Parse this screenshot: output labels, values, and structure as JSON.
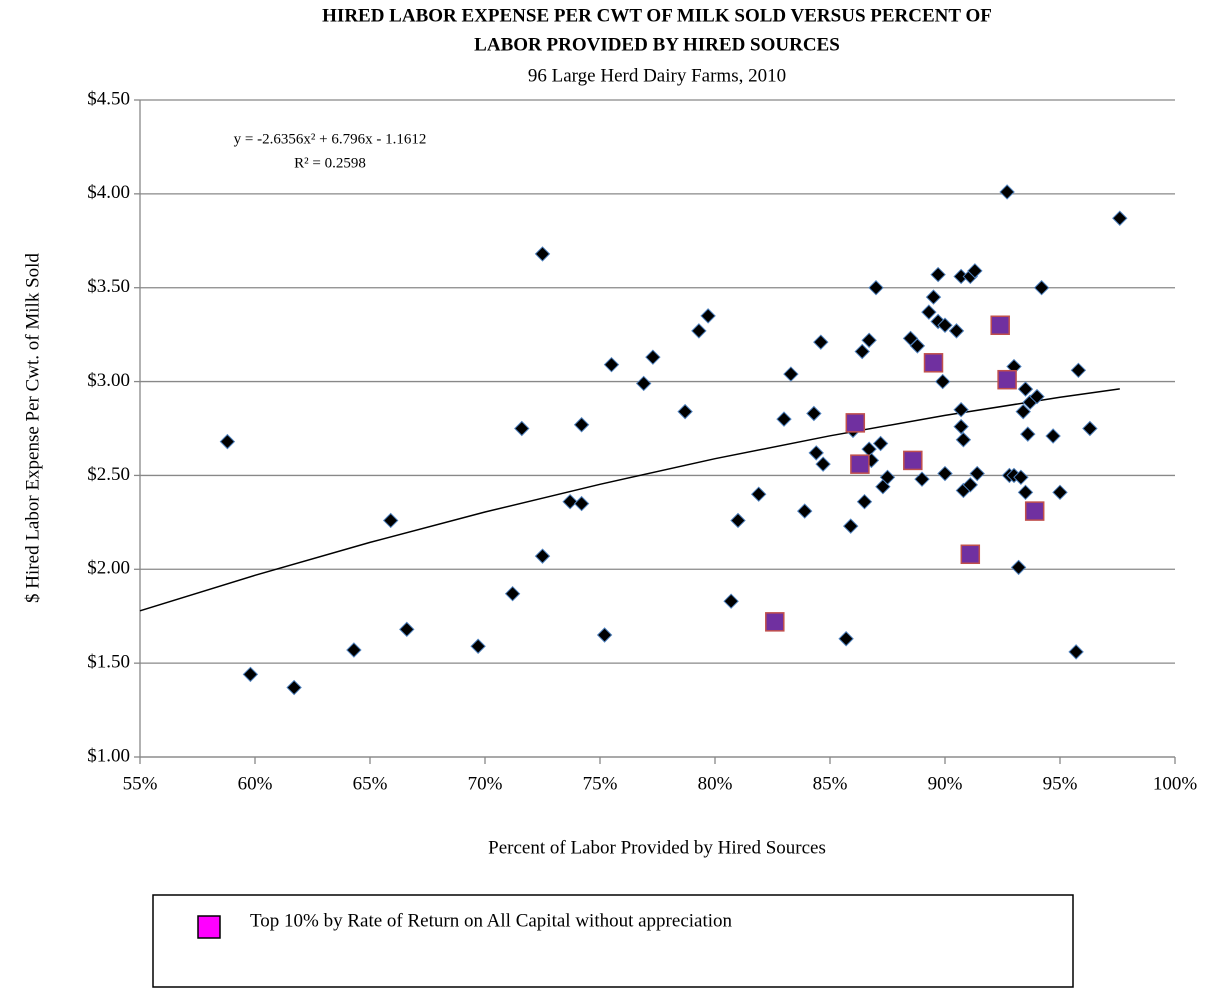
{
  "chart_data": {
    "type": "scatter",
    "title": [
      "HIRED LABOR EXPENSE PER CWT OF MILK SOLD VERSUS PERCENT OF",
      "LABOR PROVIDED BY HIRED SOURCES"
    ],
    "subtitle": "96 Large Herd Dairy Farms, 2010",
    "x_label": "Percent of Labor Provided by Hired Sources",
    "y_label": "$ Hired Labor Expense Per Cwt. of Milk Sold",
    "xlim": [
      55,
      100
    ],
    "xticks": [
      {
        "value": 55,
        "label": "55%"
      },
      {
        "value": 60,
        "label": "60%"
      },
      {
        "value": 65,
        "label": "65%"
      },
      {
        "value": 70,
        "label": "70%"
      },
      {
        "value": 75,
        "label": "75%"
      },
      {
        "value": 80,
        "label": "80%"
      },
      {
        "value": 85,
        "label": "85%"
      },
      {
        "value": 90,
        "label": "90%"
      },
      {
        "value": 95,
        "label": "95%"
      },
      {
        "value": 100,
        "label": "100%"
      }
    ],
    "ylim": [
      1,
      4.5
    ],
    "yticks": [
      {
        "value": 1,
        "label": "$1.00"
      },
      {
        "value": 1.5,
        "label": "$1.50"
      },
      {
        "value": 2,
        "label": "$2.00"
      },
      {
        "value": 2.5,
        "label": "$2.50"
      },
      {
        "value": 3,
        "label": "$3.00"
      },
      {
        "value": 3.5,
        "label": "$3.50"
      },
      {
        "value": 4,
        "label": "$4.00"
      },
      {
        "value": 4.5,
        "label": "$4.50"
      }
    ],
    "grid": true,
    "series": [
      {
        "color": "#000000",
        "marker": "diamond",
        "x": [
          58.8,
          59.8,
          61.7,
          64.3,
          65.9,
          66.6,
          69.7,
          71.2,
          71.6,
          72.5,
          72.5,
          73.7,
          74.2,
          74.2,
          75.2,
          75.5,
          76.9,
          77.3,
          78.7,
          79.3,
          79.7,
          80.7,
          81.0,
          81.9,
          83.0,
          83.3,
          83.9,
          84.3,
          84.4,
          84.6,
          84.7,
          85.7,
          85.9,
          86.0,
          86.4,
          86.5,
          86.7,
          86.7,
          86.8,
          87.0,
          87.2,
          87.3,
          87.5,
          88.5,
          88.8,
          89.0,
          89.3,
          89.5,
          89.7,
          89.7,
          89.9,
          90.0,
          90.0,
          90.5,
          90.7,
          90.7,
          90.7,
          90.8,
          90.8,
          91.1,
          91.1,
          91.3,
          91.4,
          92.7,
          92.8,
          93.0,
          93.0,
          93.2,
          93.3,
          93.4,
          93.5,
          93.5,
          93.6,
          93.7,
          94.0,
          94.2,
          94.7,
          95.0,
          95.7,
          95.8,
          96.3,
          97.6
        ],
        "values": [
          2.68,
          1.44,
          1.37,
          1.57,
          2.26,
          1.68,
          1.59,
          1.87,
          2.75,
          3.68,
          2.07,
          2.36,
          2.35,
          2.77,
          1.65,
          3.09,
          2.99,
          3.13,
          2.84,
          3.27,
          3.35,
          1.83,
          2.26,
          2.4,
          2.8,
          3.04,
          2.31,
          2.83,
          2.62,
          3.21,
          2.56,
          1.63,
          2.23,
          2.74,
          3.16,
          2.36,
          3.22,
          2.64,
          2.58,
          3.5,
          2.67,
          2.44,
          2.49,
          3.23,
          3.19,
          2.48,
          3.37,
          3.45,
          3.32,
          3.57,
          3.0,
          3.3,
          2.51,
          3.27,
          2.85,
          3.56,
          2.76,
          2.69,
          2.42,
          3.56,
          2.45,
          3.59,
          2.51,
          4.01,
          2.5,
          3.08,
          2.5,
          2.01,
          2.49,
          2.84,
          2.41,
          2.96,
          2.72,
          2.89,
          2.92,
          3.5,
          2.71,
          2.41,
          1.56,
          3.06,
          2.75,
          3.87
        ]
      },
      {
        "name": "Top 10% by Rate of Return on All Capital without appreciation",
        "color": "#7030a0",
        "legend_color": "#ff00ff",
        "marker": "square",
        "x": [
          82.6,
          86.1,
          86.3,
          88.6,
          89.5,
          91.1,
          92.4,
          92.7,
          93.9
        ],
        "values": [
          1.72,
          2.78,
          2.56,
          2.58,
          3.1,
          2.08,
          3.3,
          3.01,
          2.31
        ]
      }
    ],
    "trendline": {
      "equation": "y = -2.6356x² + 6.796x - 1.1612",
      "r_squared": "R² = 0.2598",
      "x": [
        55,
        60,
        65,
        70,
        75,
        80,
        85,
        90,
        95,
        97.6
      ],
      "values": [
        1.779,
        1.968,
        2.143,
        2.305,
        2.453,
        2.589,
        2.711,
        2.82,
        2.916,
        2.961
      ]
    }
  }
}
